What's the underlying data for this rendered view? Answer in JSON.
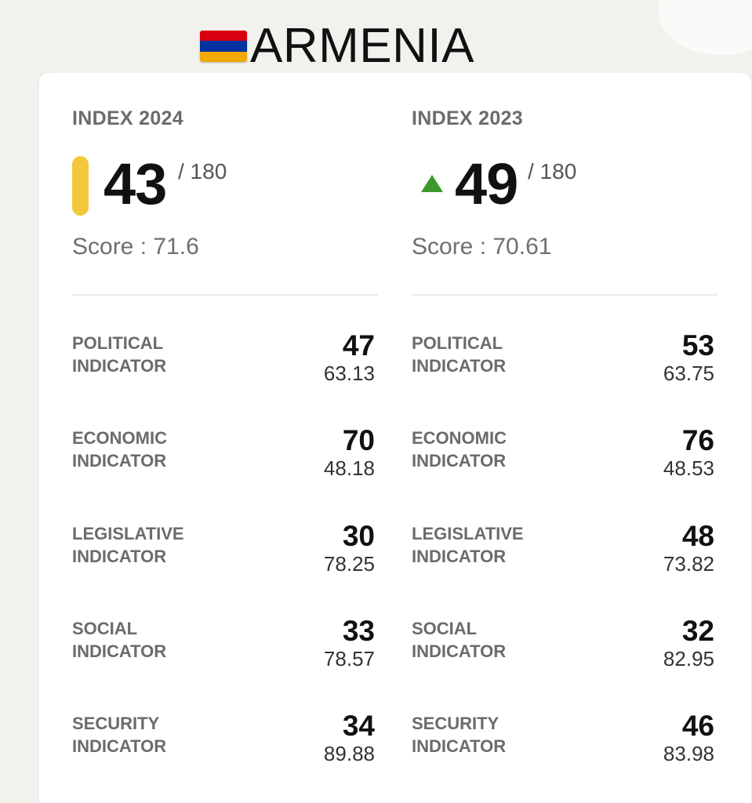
{
  "header": {
    "country": "ARMENIA",
    "flag_colors": [
      "#d90012",
      "#0033a0",
      "#f2a800"
    ]
  },
  "indices": [
    {
      "label": "INDEX 2024",
      "rank": "43",
      "rank_total": "/ 180",
      "score": "Score : 71.6",
      "marker": "yellow-pill",
      "marker_color": "#f3c93b",
      "indicators": [
        {
          "label_line1": "POLITICAL",
          "label_line2": "INDICATOR",
          "rank": "47",
          "score": "63.13"
        },
        {
          "label_line1": "ECONOMIC",
          "label_line2": "INDICATOR",
          "rank": "70",
          "score": "48.18"
        },
        {
          "label_line1": "LEGISLATIVE",
          "label_line2": "INDICATOR",
          "rank": "30",
          "score": "78.25"
        },
        {
          "label_line1": "SOCIAL",
          "label_line2": "INDICATOR",
          "rank": "33",
          "score": "78.57"
        },
        {
          "label_line1": "SECURITY",
          "label_line2": "INDICATOR",
          "rank": "34",
          "score": "89.88"
        }
      ]
    },
    {
      "label": "INDEX 2023",
      "rank": "49",
      "rank_total": "/ 180",
      "score": "Score : 70.61",
      "marker": "green-up-triangle",
      "marker_color": "#3c9a2c",
      "indicators": [
        {
          "label_line1": "POLITICAL",
          "label_line2": "INDICATOR",
          "rank": "53",
          "score": "63.75"
        },
        {
          "label_line1": "ECONOMIC",
          "label_line2": "INDICATOR",
          "rank": "76",
          "score": "48.53"
        },
        {
          "label_line1": "LEGISLATIVE",
          "label_line2": "INDICATOR",
          "rank": "48",
          "score": "73.82"
        },
        {
          "label_line1": "SOCIAL",
          "label_line2": "INDICATOR",
          "rank": "32",
          "score": "82.95"
        },
        {
          "label_line1": "SECURITY",
          "label_line2": "INDICATOR",
          "rank": "46",
          "score": "83.98"
        }
      ]
    }
  ]
}
